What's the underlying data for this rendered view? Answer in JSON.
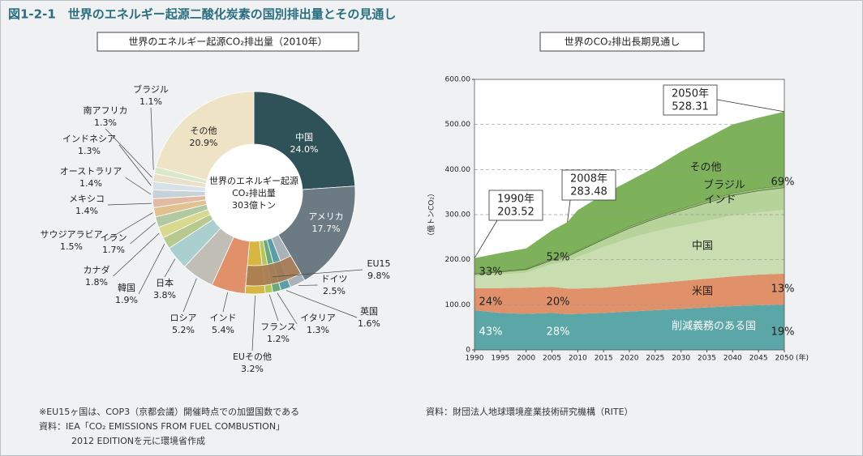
{
  "title": "図1-2-1　世界のエネルギー起源二酸化炭素の国別排出量とその見通し",
  "notes_left": [
    "※EU15ヶ国は、COP3（京都会議）開催時点での加盟国数である",
    "資料：IEA「CO₂ EMISSIONS FROM FUEL COMBUSTION」",
    "2012 EDITIONを元に環境省作成"
  ],
  "notes_right": [
    "資料：財団法人地球環境産業技術研究機構（RITE）"
  ],
  "chart_data": [
    {
      "type": "pie",
      "title": "世界のエネルギー起源CO₂排出量（2010年）",
      "center_text": [
        "世界のエネルギー起源",
        "CO₂排出量",
        "303億トン"
      ],
      "categories": [
        "中国",
        "アメリカ",
        "ドイツ",
        "英国",
        "イタリア",
        "フランス",
        "EUその他",
        "インド",
        "ロシア",
        "日本",
        "韓国",
        "カナダ",
        "イラン",
        "サウジアラビア",
        "メキシコ",
        "オーストラリア",
        "インドネシア",
        "南アフリカ",
        "ブラジル",
        "その他"
      ],
      "values": [
        24.0,
        17.7,
        2.5,
        1.6,
        1.3,
        1.2,
        3.2,
        5.4,
        5.2,
        3.8,
        1.9,
        1.8,
        1.7,
        1.5,
        1.4,
        1.4,
        1.3,
        1.3,
        1.1,
        20.9
      ],
      "value_labels": [
        "24.0%",
        "17.7%",
        "2.5%",
        "1.6%",
        "1.3%",
        "1.2%",
        "3.2%",
        "5.4%",
        "5.2%",
        "3.8%",
        "1.9%",
        "1.8%",
        "1.7%",
        "1.5%",
        "1.4%",
        "1.4%",
        "1.3%",
        "1.3%",
        "1.1%",
        "20.9%"
      ],
      "colors": [
        "#2f5259",
        "#6c7a84",
        "#a9b2b9",
        "#5b9ea7",
        "#6aa97b",
        "#b7c659",
        "#d7b641",
        "#e0916a",
        "#c1beb6",
        "#a9d0cf",
        "#b8c98f",
        "#d8d88f",
        "#b1c9a0",
        "#e1c190",
        "#e2b9a1",
        "#c9d1d8",
        "#d9e1e8",
        "#e9e1c9",
        "#d9e8c9",
        "#efe3c6"
      ],
      "groups": [
        {
          "name": "EU15",
          "value": 9.8,
          "value_label": "9.8%",
          "color": "#a97a52"
        }
      ]
    },
    {
      "type": "area",
      "title": "世界のCO₂排出長期見通し",
      "ylabel": "（億トンCO₂）",
      "xlabel": "(年)",
      "x": [
        1990,
        1995,
        2000,
        2005,
        2008,
        2010,
        2015,
        2020,
        2025,
        2030,
        2035,
        2040,
        2045,
        2050
      ],
      "xlim": [
        1990,
        2050
      ],
      "xticks": [
        1990,
        1995,
        2000,
        2005,
        2010,
        2015,
        2020,
        2025,
        2030,
        2035,
        2040,
        2045,
        2050
      ],
      "ylim": [
        0,
        600
      ],
      "yticks": [
        0,
        {
          "value": 100,
          "label": "100.00"
        },
        {
          "value": 200,
          "label": "200.00"
        },
        {
          "value": 300,
          "label": "300.00"
        },
        {
          "value": 400,
          "label": "400.00"
        },
        {
          "value": 500,
          "label": "500.00"
        },
        {
          "value": 600,
          "label": "600.00"
        }
      ],
      "grid": true,
      "series": [
        {
          "name": "削減義務のある国",
          "color": "#5ba7a8",
          "values": [
            88,
            82,
            80,
            82,
            79,
            80,
            82,
            85,
            88,
            91,
            94,
            97,
            99,
            100
          ],
          "share_labels": [
            "43%",
            "28%",
            "19%"
          ]
        },
        {
          "name": "米国",
          "color": "#e0916a",
          "values": [
            49,
            55,
            58,
            58,
            57,
            56,
            56,
            58,
            60,
            62,
            64,
            66,
            68,
            69
          ],
          "share_labels": [
            "24%",
            "20%",
            "13%"
          ]
        },
        {
          "name": "中国",
          "color": "#c9ddb1",
          "values": [
            26,
            30,
            33,
            50,
            60,
            70,
            90,
            105,
            115,
            122,
            128,
            135,
            138,
            141
          ]
        },
        {
          "name": "インド",
          "color": "#b6d49a",
          "values": [
            5,
            6,
            7,
            9,
            11,
            12,
            17,
            22,
            28,
            34,
            40,
            45,
            48,
            50
          ]
        },
        {
          "name": "ブラジル",
          "color": "#9cc07a",
          "values": [
            2,
            2,
            2,
            3,
            3,
            3,
            3,
            4,
            4,
            4,
            5,
            5,
            5,
            5
          ]
        },
        {
          "name": "その他",
          "color": "#7db25b",
          "values": [
            33.52,
            40,
            45,
            63,
            73.48,
            89,
            97,
            101,
            110,
            127,
            139,
            152,
            157,
            163.31
          ]
        }
      ],
      "developing_share_labels": [
        "33%",
        "52%",
        "69%"
      ],
      "callouts": [
        {
          "label": "1990年",
          "x": 1990,
          "value": 203.52
        },
        {
          "label": "2008年",
          "x": 2008,
          "value": 283.48
        },
        {
          "label": "2050年",
          "x": 2050,
          "value": 528.31
        }
      ]
    }
  ]
}
